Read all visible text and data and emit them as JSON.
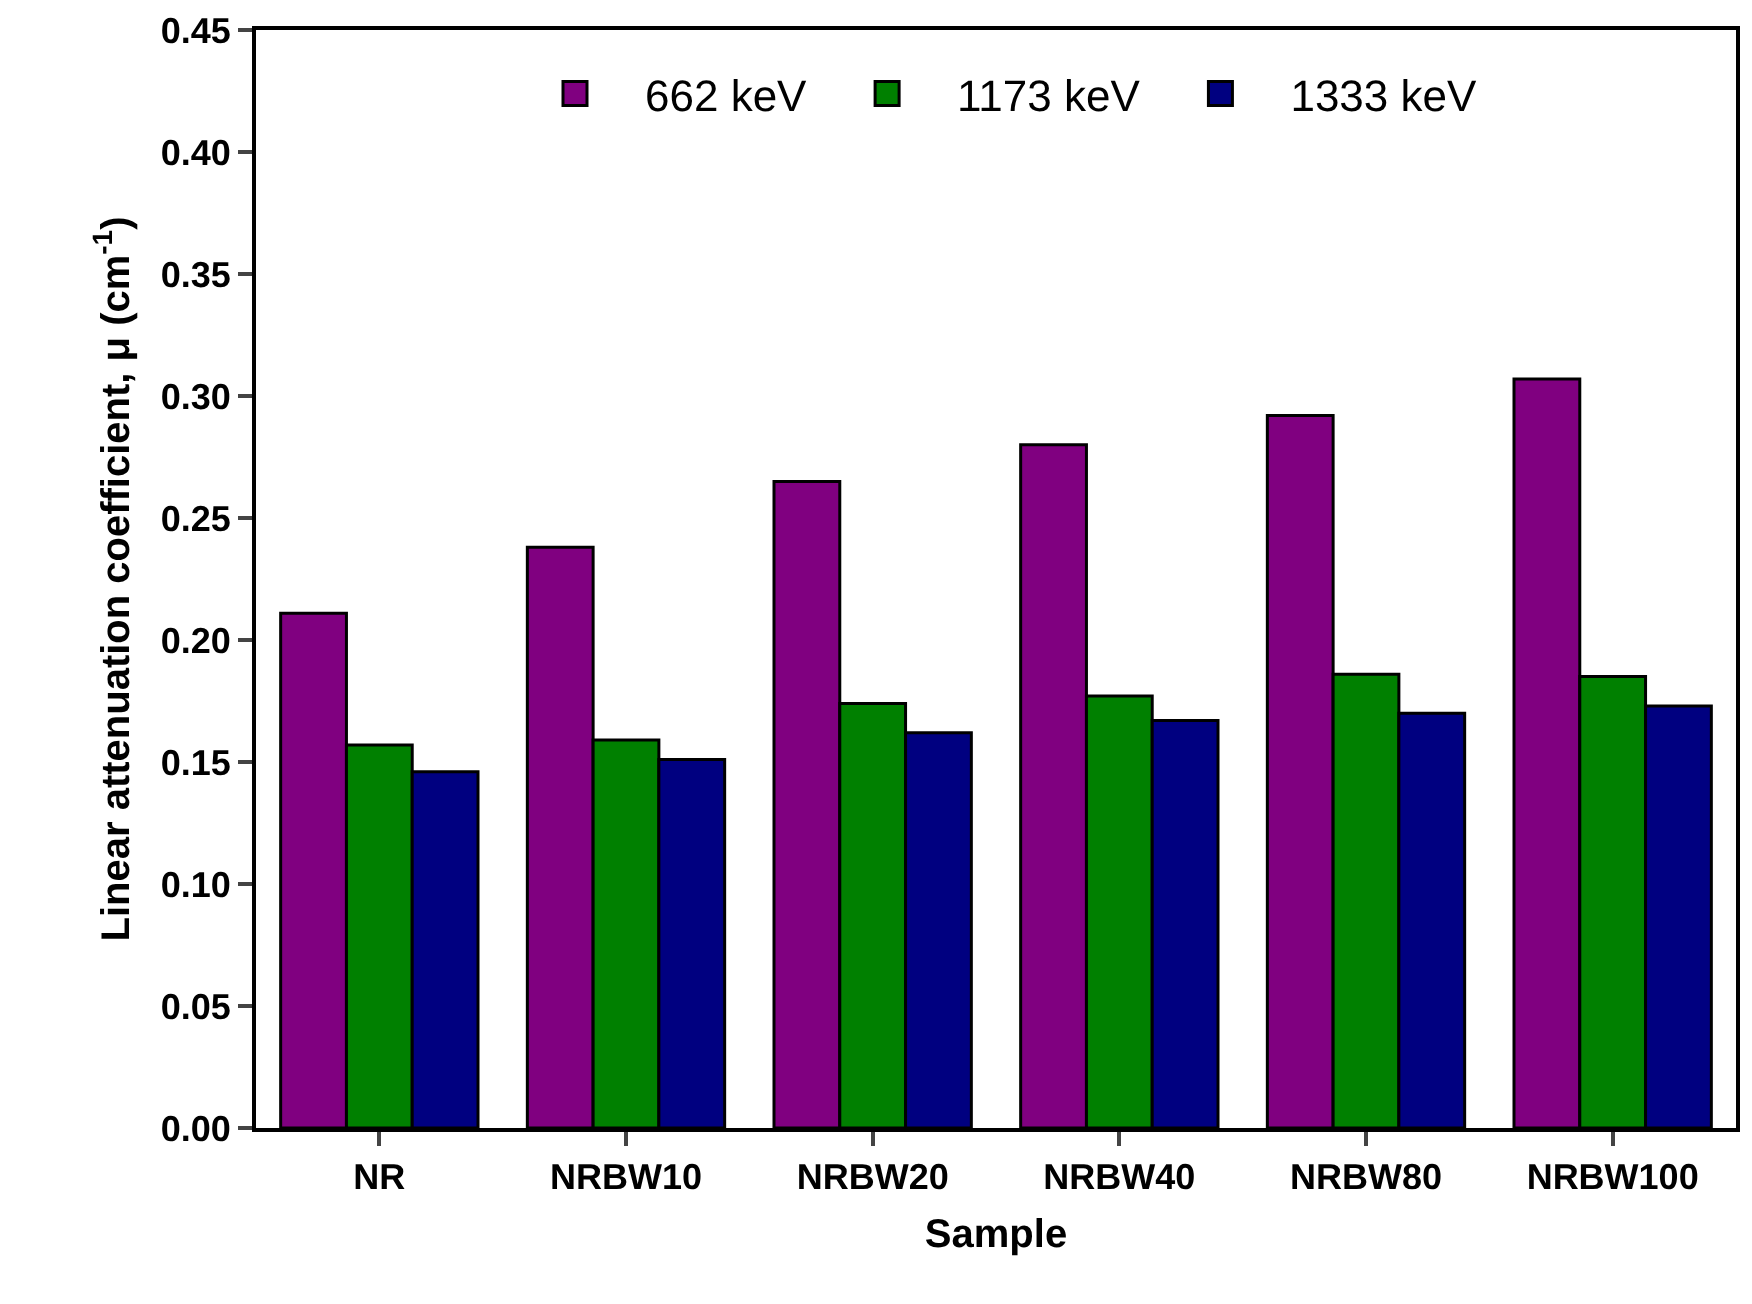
{
  "chart_data": {
    "type": "bar",
    "xlabel": "Sample",
    "ylabel": "Linear attenuation coefficient, μ (cm$^{-1}$)",
    "categories": [
      "NR",
      "NRBW10",
      "NRBW20",
      "NRBW40",
      "NRBW80",
      "NRBW100"
    ],
    "series": [
      {
        "name": "662 keV",
        "color": "#800080",
        "values": [
          0.211,
          0.238,
          0.265,
          0.28,
          0.292,
          0.307
        ]
      },
      {
        "name": "1173 keV",
        "color": "#008000",
        "values": [
          0.157,
          0.159,
          0.174,
          0.177,
          0.186,
          0.185
        ]
      },
      {
        "name": "1333 keV",
        "color": "#000080",
        "values": [
          0.146,
          0.151,
          0.162,
          0.167,
          0.17,
          0.173
        ]
      }
    ],
    "ylim": [
      0,
      0.45
    ],
    "yticks": [
      {
        "value": 0,
        "label": "0.00"
      },
      {
        "value": 0.05,
        "label": "0.05"
      },
      {
        "value": 0.1,
        "label": "0.10"
      },
      {
        "value": 0.15,
        "label": "0.15"
      },
      {
        "value": 0.2,
        "label": "0.20"
      },
      {
        "value": 0.25,
        "label": "0.25"
      },
      {
        "value": 0.3,
        "label": "0.30"
      },
      {
        "value": 0.35,
        "label": "0.35"
      },
      {
        "value": 0.4,
        "label": "0.40"
      },
      {
        "value": 0.45,
        "label": "0.45"
      }
    ],
    "grid": false,
    "legend": "top"
  }
}
